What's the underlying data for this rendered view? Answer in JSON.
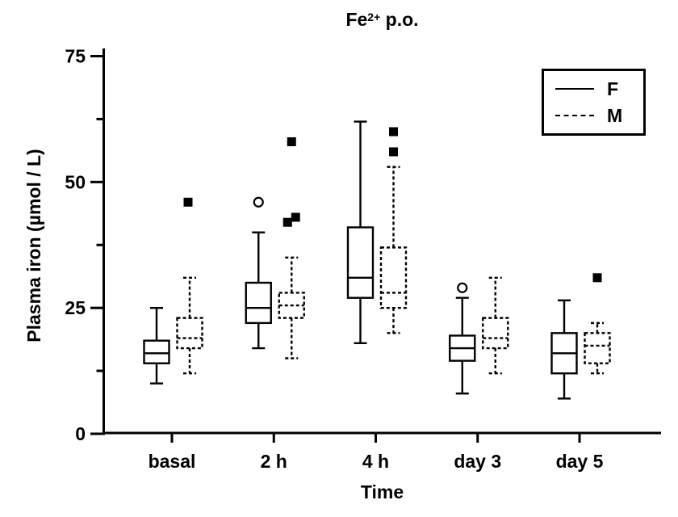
{
  "chart_data": {
    "type": "boxplot",
    "title": {
      "base": "Fe",
      "sup": "2+",
      "rest": " p.o."
    },
    "xlabel": "Time",
    "ylabel": "Plasma iron (µmol / L)",
    "categories": [
      "basal",
      "2 h",
      "4 h",
      "day 3",
      "day 5"
    ],
    "y_axis": {
      "min": 0,
      "max": 75,
      "major_ticks": [
        0,
        25,
        50,
        75
      ],
      "minor_ticks": [
        12.5,
        37.5,
        62.5
      ]
    },
    "legend": {
      "position": "top-right",
      "entries": [
        {
          "label": "F",
          "line": "solid"
        },
        {
          "label": "M",
          "line": "dashed"
        }
      ]
    },
    "series": [
      {
        "name": "F",
        "line": "solid",
        "outlier_marker": "open-circle",
        "boxes": [
          {
            "category": "basal",
            "whisker_low": 10,
            "q1": 14,
            "median": 16,
            "q3": 18.5,
            "whisker_high": 25,
            "outliers": []
          },
          {
            "category": "2 h",
            "whisker_low": 17,
            "q1": 22,
            "median": 25,
            "q3": 30,
            "whisker_high": 40,
            "outliers": [
              {
                "value": 46,
                "dx": 0
              }
            ]
          },
          {
            "category": "4 h",
            "whisker_low": 18,
            "q1": 27,
            "median": 31,
            "q3": 41,
            "whisker_high": 62,
            "outliers": []
          },
          {
            "category": "day 3",
            "whisker_low": 8,
            "q1": 14.5,
            "median": 17,
            "q3": 19.5,
            "whisker_high": 27,
            "outliers": [
              {
                "value": 29,
                "dx": 0
              }
            ]
          },
          {
            "category": "day 5",
            "whisker_low": 7,
            "q1": 12,
            "median": 16,
            "q3": 20,
            "whisker_high": 26.5,
            "outliers": []
          }
        ]
      },
      {
        "name": "M",
        "line": "dashed",
        "outlier_marker": "filled-square",
        "boxes": [
          {
            "category": "basal",
            "whisker_low": 12,
            "q1": 17,
            "median": 19,
            "q3": 23,
            "whisker_high": 31,
            "outliers": [
              {
                "value": 46,
                "dx": -2
              }
            ]
          },
          {
            "category": "2 h",
            "whisker_low": 15,
            "q1": 23,
            "median": 25.5,
            "q3": 28,
            "whisker_high": 35,
            "outliers": [
              {
                "value": 42,
                "dx": -5
              },
              {
                "value": 43,
                "dx": 5
              },
              {
                "value": 58,
                "dx": 0
              }
            ]
          },
          {
            "category": "4 h",
            "whisker_low": 20,
            "q1": 25,
            "median": 28,
            "q3": 37,
            "whisker_high": 53,
            "outliers": [
              {
                "value": 56,
                "dx": 0
              },
              {
                "value": 60,
                "dx": 0
              }
            ]
          },
          {
            "category": "day 3",
            "whisker_low": 12,
            "q1": 17,
            "median": 19,
            "q3": 23,
            "whisker_high": 31,
            "outliers": []
          },
          {
            "category": "day 5",
            "whisker_low": 12,
            "q1": 14,
            "median": 17.5,
            "q3": 20,
            "whisker_high": 22,
            "outliers": [
              {
                "value": 31,
                "dx": 0
              }
            ]
          }
        ]
      }
    ],
    "colors": {
      "foreground": "#000000",
      "background": "#ffffff"
    }
  }
}
